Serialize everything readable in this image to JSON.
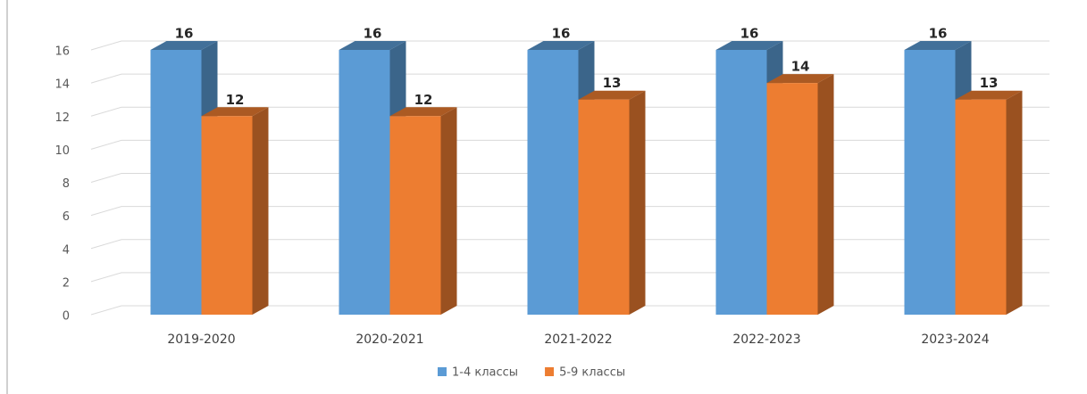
{
  "chart_data": {
    "type": "bar3d",
    "categories": [
      "2019-2020",
      "2020-2021",
      "2021-2022",
      "2022-2023",
      "2023-2024"
    ],
    "series": [
      {
        "name": "1-4 классы",
        "color": "#5b9bd5",
        "values": [
          16,
          16,
          16,
          16,
          16
        ]
      },
      {
        "name": "5-9 классы",
        "color": "#ed7d31",
        "values": [
          12,
          12,
          13,
          14,
          13
        ]
      }
    ],
    "ylim": [
      0,
      16
    ],
    "yticks": [
      0,
      2,
      4,
      6,
      8,
      10,
      12,
      14,
      16
    ],
    "grid": true,
    "legend": "bottom"
  }
}
